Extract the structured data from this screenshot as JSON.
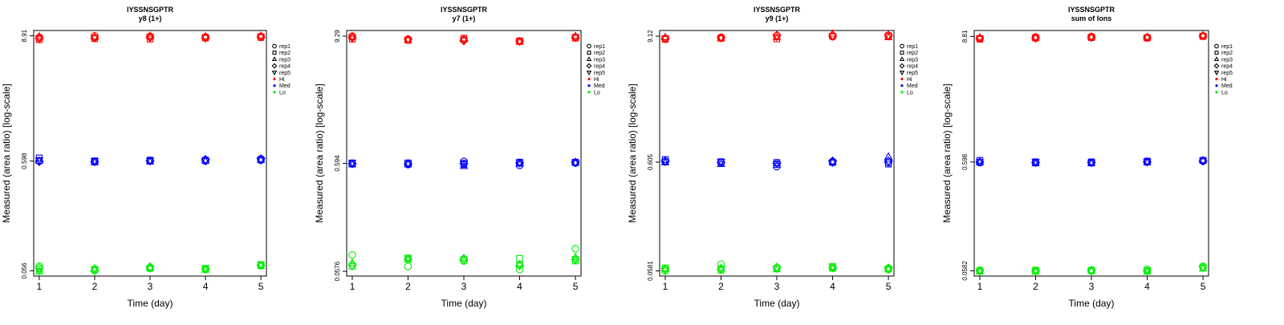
{
  "legend_entries": [
    {
      "label": "rep1",
      "marker": "circle"
    },
    {
      "label": "rep2",
      "marker": "square"
    },
    {
      "label": "rep3",
      "marker": "triangle-up"
    },
    {
      "label": "rep4",
      "marker": "diamond"
    },
    {
      "label": "rep5",
      "marker": "triangle-down"
    },
    {
      "label": "Hi",
      "marker": "dot",
      "color": "#ff0000"
    },
    {
      "label": "Med",
      "marker": "dot",
      "color": "#0000ff"
    },
    {
      "label": "Lo",
      "marker": "dot",
      "color": "#00ee00"
    }
  ],
  "level_colors": {
    "Hi": "#ff0000",
    "Med": "#0000ff",
    "Lo": "#00ee00"
  },
  "chart_data": [
    {
      "type": "scatter",
      "title": "IYSSNSGPTR",
      "subtitle": "y8 (1+)",
      "xlabel": "Time (day)",
      "ylabel": "Measured (area ratio) [log-scale]",
      "y_scale": "log",
      "x_ticks": [
        1,
        2,
        3,
        4,
        5
      ],
      "y_ticks": [
        0.056,
        0.598,
        8.91
      ],
      "y_tick_labels": [
        "0.056",
        "0.598",
        "8.91"
      ],
      "xlim": [
        0.9,
        5.1
      ],
      "ylim": [
        0.05,
        10.0
      ],
      "legend_position": "right",
      "series": [
        {
          "name": "Hi",
          "color": "#ff0000",
          "values": [
            [
              8.6,
              8.2,
              8.8,
              8.4,
              8.5
            ],
            [
              8.9,
              8.4,
              8.7,
              8.5,
              8.6
            ],
            [
              8.8,
              8.3,
              8.9,
              8.6,
              8.7
            ],
            [
              8.7,
              8.5,
              8.8,
              8.5,
              8.6
            ],
            [
              8.8,
              8.6,
              8.9,
              8.7,
              8.8
            ]
          ]
        },
        {
          "name": "Med",
          "color": "#0000ff",
          "values": [
            [
              0.6,
              0.64,
              0.6,
              0.59,
              0.61
            ],
            [
              0.59,
              0.6,
              0.58,
              0.59,
              0.6
            ],
            [
              0.6,
              0.61,
              0.59,
              0.6,
              0.6
            ],
            [
              0.6,
              0.61,
              0.6,
              0.62,
              0.6
            ],
            [
              0.61,
              0.62,
              0.61,
              0.63,
              0.61
            ]
          ]
        },
        {
          "name": "Lo",
          "color": "#00ee00",
          "values": [
            [
              0.062,
              0.058,
              0.055,
              0.06,
              0.056
            ],
            [
              0.058,
              0.057,
              0.059,
              0.056,
              0.058
            ],
            [
              0.06,
              0.059,
              0.06,
              0.061,
              0.059
            ],
            [
              0.058,
              0.059,
              0.057,
              0.058,
              0.059
            ],
            [
              0.063,
              0.064,
              0.062,
              0.063,
              0.064
            ]
          ]
        }
      ]
    },
    {
      "type": "scatter",
      "title": "IYSSNSGPTR",
      "subtitle": "y7 (1+)",
      "xlabel": "Time (day)",
      "ylabel": "Measured (area ratio) [log-scale]",
      "y_scale": "log",
      "x_ticks": [
        1,
        2,
        3,
        4,
        5
      ],
      "y_ticks": [
        0.0576,
        0.594,
        9.29
      ],
      "y_tick_labels": [
        "0.0576",
        "0.594",
        "9.29"
      ],
      "xlim": [
        0.9,
        5.1
      ],
      "ylim": [
        0.052,
        10.5
      ],
      "legend_position": "right",
      "series": [
        {
          "name": "Hi",
          "color": "#ff0000",
          "values": [
            [
              9.3,
              8.7,
              9.2,
              9.0,
              9.1
            ],
            [
              8.7,
              8.5,
              8.6,
              8.7,
              8.6
            ],
            [
              8.6,
              8.9,
              8.7,
              8.4,
              8.5
            ],
            [
              8.3,
              8.4,
              8.2,
              8.3,
              8.3
            ],
            [
              9.1,
              8.9,
              9.3,
              9.0,
              9.1
            ]
          ]
        },
        {
          "name": "Med",
          "color": "#0000ff",
          "values": [
            [
              0.59,
              0.6,
              0.58,
              0.59,
              0.6
            ],
            [
              0.58,
              0.6,
              0.58,
              0.59,
              0.59
            ],
            [
              0.62,
              0.58,
              0.56,
              0.59,
              0.6
            ],
            [
              0.57,
              0.61,
              0.59,
              0.6,
              0.6
            ],
            [
              0.6,
              0.61,
              0.6,
              0.61,
              0.6
            ]
          ]
        },
        {
          "name": "Lo",
          "color": "#00ee00",
          "values": [
            [
              0.082,
              0.064,
              0.069,
              0.066,
              0.065
            ],
            [
              0.064,
              0.077,
              0.074,
              0.075,
              0.076
            ],
            [
              0.072,
              0.075,
              0.077,
              0.074,
              0.073
            ],
            [
              0.06,
              0.076,
              0.067,
              0.065,
              0.066
            ],
            [
              0.094,
              0.072,
              0.078,
              0.074,
              0.075
            ]
          ]
        }
      ]
    },
    {
      "type": "scatter",
      "title": "IYSSNSGPTR",
      "subtitle": "y9 (1+)",
      "xlabel": "Time (day)",
      "ylabel": "Measured (area ratio) [log-scale]",
      "y_scale": "log",
      "x_ticks": [
        1,
        2,
        3,
        4,
        5
      ],
      "y_ticks": [
        0.0581,
        0.605,
        9.12
      ],
      "y_tick_labels": [
        "0.0581",
        "0.605",
        "9.12"
      ],
      "xlim": [
        0.9,
        5.1
      ],
      "ylim": [
        0.052,
        10.3
      ],
      "legend_position": "right",
      "series": [
        {
          "name": "Hi",
          "color": "#ff0000",
          "values": [
            [
              8.7,
              8.5,
              8.9,
              8.6,
              8.7
            ],
            [
              8.9,
              8.7,
              8.8,
              8.8,
              8.8
            ],
            [
              9.2,
              8.6,
              8.9,
              9.3,
              9.0
            ],
            [
              9.0,
              9.1,
              9.6,
              9.2,
              9.1
            ],
            [
              9.1,
              9.2,
              8.9,
              9.3,
              9.1
            ]
          ]
        },
        {
          "name": "Med",
          "color": "#0000ff",
          "values": [
            [
              0.61,
              0.64,
              0.6,
              0.62,
              0.61
            ],
            [
              0.6,
              0.61,
              0.58,
              0.6,
              0.61
            ],
            [
              0.55,
              0.6,
              0.57,
              0.59,
              0.58
            ],
            [
              0.61,
              0.6,
              0.61,
              0.62,
              0.6
            ],
            [
              0.6,
              0.58,
              0.68,
              0.62,
              0.61
            ]
          ]
        },
        {
          "name": "Lo",
          "color": "#00ee00",
          "values": [
            [
              0.058,
              0.062,
              0.06,
              0.061,
              0.059
            ],
            [
              0.067,
              0.059,
              0.062,
              0.06,
              0.061
            ],
            [
              0.062,
              0.061,
              0.06,
              0.063,
              0.061
            ],
            [
              0.062,
              0.064,
              0.061,
              0.062,
              0.063
            ],
            [
              0.06,
              0.061,
              0.061,
              0.062,
              0.06
            ]
          ]
        }
      ]
    },
    {
      "type": "scatter",
      "title": "IYSSNSGPTR",
      "subtitle": "sum of Ions",
      "xlabel": "Time (day)",
      "ylabel": "Measured (area ratio) [log-scale]",
      "y_scale": "log",
      "x_ticks": [
        1,
        2,
        3,
        4,
        5
      ],
      "y_ticks": [
        0.0582,
        0.598,
        8.81
      ],
      "y_tick_labels": [
        "0.0582",
        "0.598",
        "8.81"
      ],
      "xlim": [
        0.9,
        5.1
      ],
      "ylim": [
        0.052,
        10.0
      ],
      "legend_position": "right",
      "series": [
        {
          "name": "Hi",
          "color": "#ff0000",
          "values": [
            [
              8.4,
              8.3,
              8.6,
              8.5,
              8.5
            ],
            [
              8.7,
              8.5,
              8.6,
              8.5,
              8.6
            ],
            [
              8.8,
              8.6,
              8.7,
              8.6,
              8.7
            ],
            [
              8.6,
              8.5,
              8.7,
              8.6,
              8.6
            ],
            [
              8.9,
              8.8,
              9.0,
              8.9,
              8.9
            ]
          ]
        },
        {
          "name": "Med",
          "color": "#0000ff",
          "values": [
            [
              0.59,
              0.62,
              0.59,
              0.6,
              0.6
            ],
            [
              0.59,
              0.6,
              0.58,
              0.59,
              0.6
            ],
            [
              0.59,
              0.6,
              0.58,
              0.59,
              0.59
            ],
            [
              0.6,
              0.61,
              0.59,
              0.6,
              0.6
            ],
            [
              0.61,
              0.62,
              0.62,
              0.61,
              0.61
            ]
          ]
        },
        {
          "name": "Lo",
          "color": "#00ee00",
          "values": [
            [
              0.059,
              0.058,
              0.057,
              0.058,
              0.058
            ],
            [
              0.058,
              0.059,
              0.057,
              0.058,
              0.058
            ],
            [
              0.058,
              0.059,
              0.058,
              0.059,
              0.058
            ],
            [
              0.06,
              0.058,
              0.057,
              0.058,
              0.059
            ],
            [
              0.064,
              0.062,
              0.061,
              0.063,
              0.062
            ]
          ]
        }
      ]
    }
  ]
}
